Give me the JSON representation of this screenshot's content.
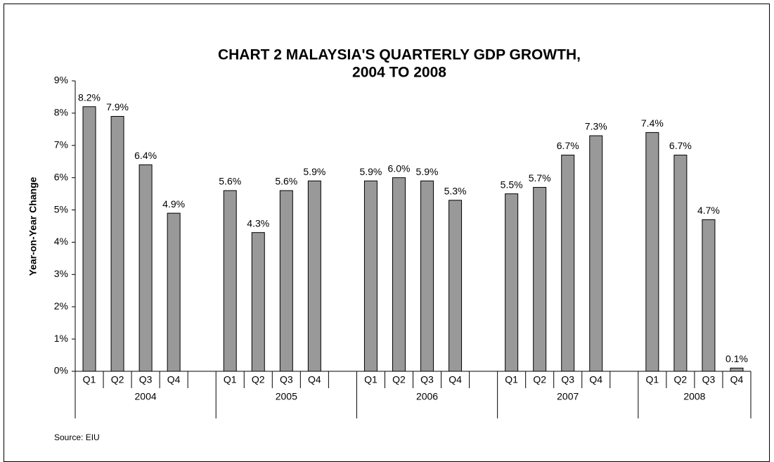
{
  "chart_data": {
    "type": "bar",
    "title": "CHART 2     MALAYSIA'S QUARTERLY GDP GROWTH,",
    "subtitle": "2004 TO 2008",
    "y_label": "Year-on-Year Change",
    "source": "Source: EIU",
    "color": "#999999",
    "categories": [
      "Q1",
      "Q2",
      "Q3",
      "Q4",
      null,
      "Q1",
      "Q2",
      "Q3",
      "Q4",
      null,
      "Q1",
      "Q2",
      "Q3",
      "Q4",
      null,
      "Q1",
      "Q2",
      "Q3",
      "Q4",
      null,
      "Q1",
      "Q2",
      "Q3",
      "Q4"
    ],
    "groups": [
      "2004",
      "2005",
      "2006",
      "2007",
      "2008"
    ],
    "values": [
      8.2,
      7.9,
      6.4,
      4.9,
      null,
      5.6,
      4.3,
      5.6,
      5.9,
      null,
      5.9,
      6.0,
      5.9,
      5.3,
      null,
      5.5,
      5.7,
      6.7,
      7.3,
      null,
      7.4,
      6.7,
      4.7,
      0.1
    ],
    "value_labels": [
      "8.2%",
      "7.9%",
      "6.4%",
      "4.9%",
      null,
      "5.6%",
      "4.3%",
      "5.6%",
      "5.9%",
      null,
      "5.9%",
      "6.0%",
      "5.9%",
      "5.3%",
      null,
      "5.5%",
      "5.7%",
      "6.7%",
      "7.3%",
      null,
      "7.4%",
      "6.7%",
      "4.7%",
      "0.1%"
    ],
    "ylim": [
      0,
      9
    ],
    "yticks": [
      {
        "value": 0,
        "label": "0%"
      },
      {
        "value": 1,
        "label": "1%"
      },
      {
        "value": 2,
        "label": "2%"
      },
      {
        "value": 3,
        "label": "3%"
      },
      {
        "value": 4,
        "label": "4%"
      },
      {
        "value": 5,
        "label": "5%"
      },
      {
        "value": 6,
        "label": "6%"
      },
      {
        "value": 7,
        "label": "7%"
      },
      {
        "value": 8,
        "label": "8%"
      },
      {
        "value": 9,
        "label": "9%"
      }
    ],
    "grid": false
  }
}
